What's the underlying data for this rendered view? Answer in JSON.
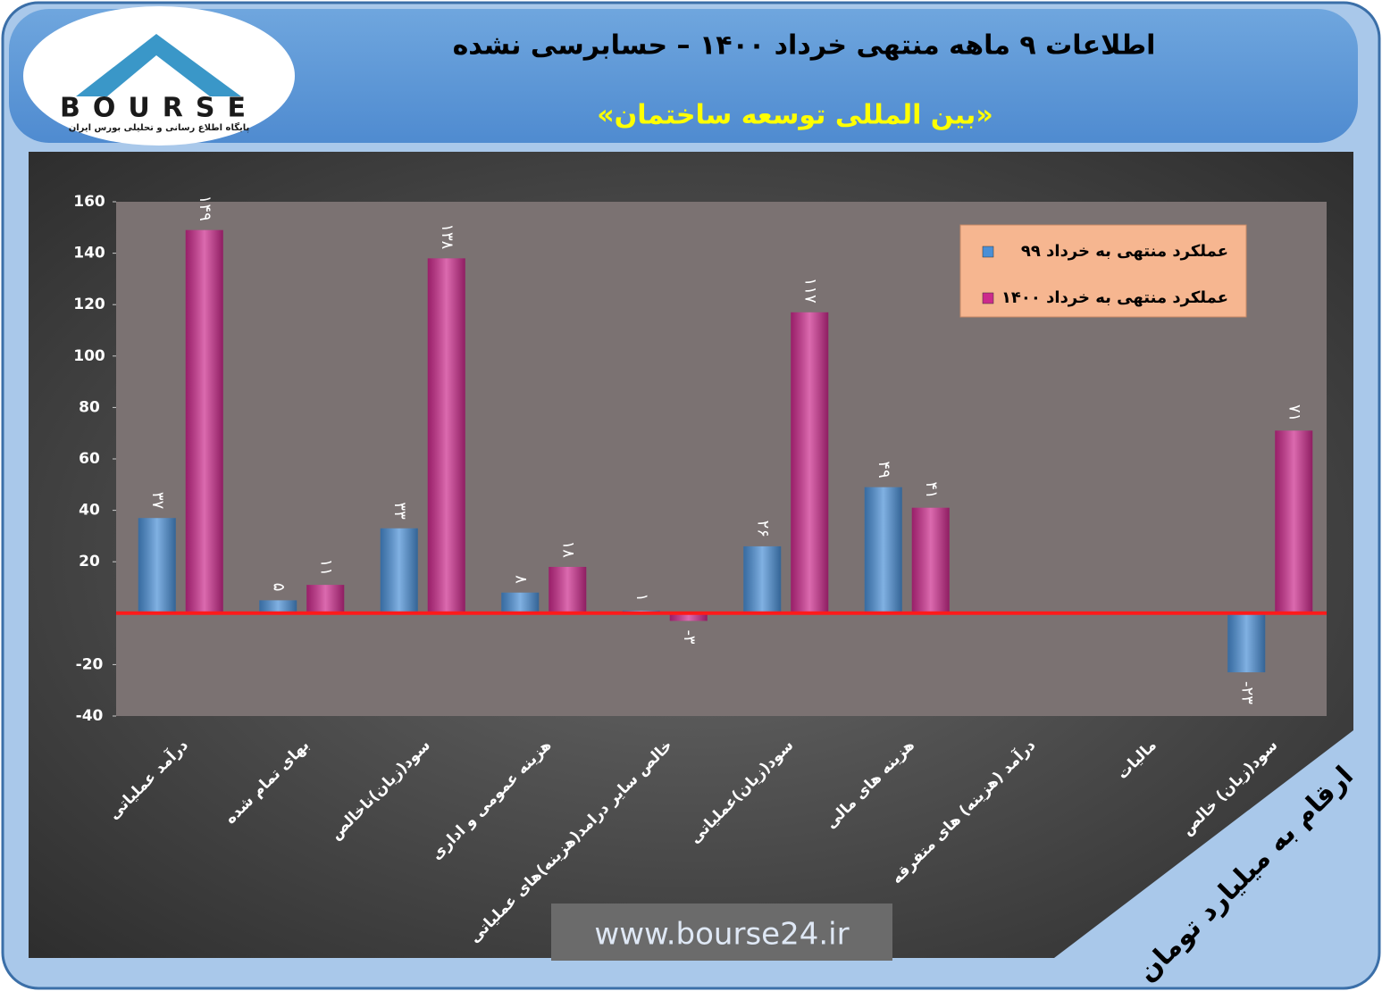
{
  "logo": {
    "name": "BOURSE",
    "tagline": "پایگاه اطلاع رسانی و تحلیلی بورس ایران"
  },
  "chart_data": {
    "type": "bar",
    "title": "اطلاعات ۹ ماهه منتهی خرداد ۱۴۰۰ – حسابرسی نشده",
    "subtitle": "«بین المللی توسعه ساختمان»",
    "categories": [
      "درآمد عملیاتی",
      "بهای تمام شده",
      "سود(زیان)ناخالص",
      "هزینه عمومی و اداری",
      "خالص سایر درامد(هزینه)های عملیاتی",
      "سود(زیان)عملیاتی",
      "هزینه های مالی",
      "درآمد (هزینه) های متفرقه",
      "مالیات",
      "سود(زیان) خالص"
    ],
    "series": [
      {
        "name": "عملکرد منتهی به خرداد ۹۹",
        "color": "#4a8fd6",
        "values": [
          37,
          5,
          33,
          8,
          1,
          26,
          49,
          null,
          null,
          -23
        ],
        "value_labels": [
          "۳۷",
          "۵",
          "۳۳",
          "۸",
          "۱",
          "۲۶",
          "۴۹",
          null,
          null,
          "-۲۳"
        ]
      },
      {
        "name": "عملکرد منتهی به خرداد ۱۴۰۰",
        "color": "#cc2a8c",
        "values": [
          149,
          11,
          138,
          18,
          -3,
          117,
          41,
          null,
          null,
          71
        ],
        "value_labels": [
          "۱۴۹",
          "۱۱",
          "۱۳۸",
          "۱۸",
          "-۳",
          "۱۱۷",
          "۴۱",
          null,
          null,
          "۷۱"
        ]
      }
    ],
    "ylim": [
      -40,
      160
    ],
    "yticks": [
      -40,
      -20,
      20,
      40,
      60,
      80,
      100,
      120,
      140,
      160
    ],
    "grid": false,
    "legend": "top-right",
    "zero_line_color": "#ff1a1a",
    "units_note": "ارقام به میلیارد تومان",
    "watermark": "www.bourse24.ir"
  }
}
